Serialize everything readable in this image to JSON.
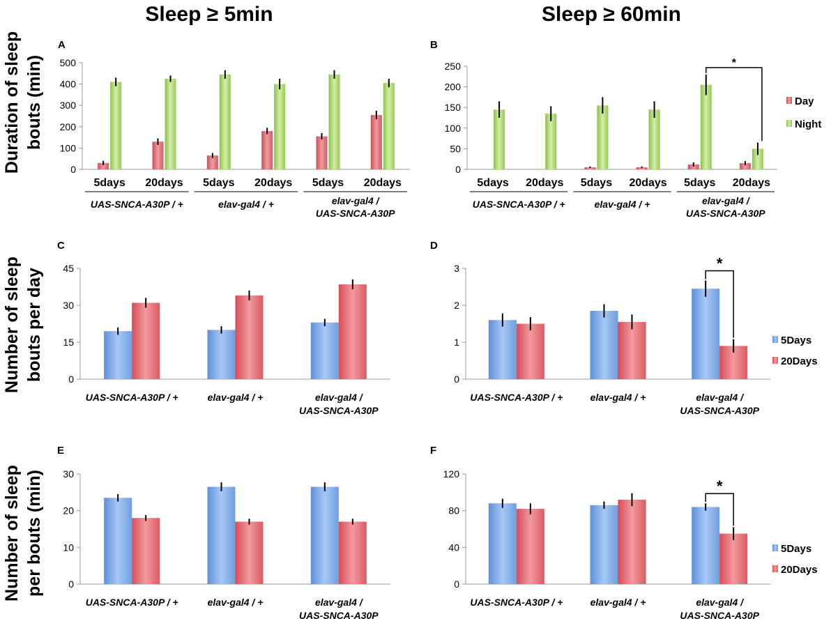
{
  "titles": {
    "left": "Sleep ≥ 5min",
    "right": "Sleep ≥ 60min"
  },
  "ylabels": {
    "row1": [
      "Duration of sleep",
      "bouts (min)"
    ],
    "row2": [
      "Number of sleep",
      "bouts per day"
    ],
    "row3": [
      "Number of sleep",
      "per bouts (min)"
    ]
  },
  "group_labels": {
    "g1": "UAS-SNCA-A30P / +",
    "g2": "elav-gal4 / +",
    "g3_line1": "elav-gal4 /",
    "g3_line2": "UAS-SNCA-A30P"
  },
  "colors": {
    "day": "#d9626a",
    "night": "#a6d35f",
    "d5": "#79a9e8",
    "d20": "#e9666d",
    "axis": "#999999",
    "err": "#000000"
  },
  "chart_data": [
    {
      "panel": "A",
      "type": "bar",
      "ylim": [
        0,
        500
      ],
      "yticks": [
        0,
        100,
        200,
        300,
        400,
        500
      ],
      "categories": [
        "5days",
        "20days",
        "5days",
        "20days",
        "5days",
        "20days"
      ],
      "groups": [
        "UAS-SNCA-A30P / +",
        "elav-gal4 / +",
        "elav-gal4 / UAS-SNCA-A30P"
      ],
      "series": [
        {
          "name": "Day",
          "color": "day",
          "values": [
            30,
            130,
            65,
            180,
            155,
            255
          ],
          "errors": [
            10,
            15,
            12,
            15,
            15,
            20
          ]
        },
        {
          "name": "Night",
          "color": "night",
          "values": [
            410,
            425,
            445,
            400,
            445,
            405
          ],
          "errors": [
            20,
            15,
            20,
            25,
            20,
            20
          ]
        }
      ],
      "legend": null
    },
    {
      "panel": "B",
      "type": "bar",
      "ylim": [
        0,
        250
      ],
      "yticks": [
        0,
        50,
        100,
        150,
        200,
        250
      ],
      "categories": [
        "5days",
        "20days",
        "5days",
        "20days",
        "5days",
        "20days"
      ],
      "groups": [
        "UAS-SNCA-A30P / +",
        "elav-gal4 / +",
        "elav-gal4 / UAS-SNCA-A30P"
      ],
      "series": [
        {
          "name": "Day",
          "color": "day",
          "values": [
            0,
            0,
            5,
            5,
            12,
            15
          ],
          "errors": [
            0,
            0,
            2,
            2,
            5,
            5
          ]
        },
        {
          "name": "Night",
          "color": "night",
          "values": [
            145,
            135,
            155,
            145,
            205,
            50
          ],
          "errors": [
            20,
            18,
            20,
            20,
            25,
            15
          ]
        }
      ],
      "legend": [
        "Day",
        "Night"
      ],
      "significance": {
        "from_bar": 4,
        "to_bar": 5,
        "label": "*"
      }
    },
    {
      "panel": "C",
      "type": "bar",
      "ylim": [
        0,
        45
      ],
      "yticks": [
        0,
        15,
        30,
        45
      ],
      "categories": [
        "UAS-SNCA-A30P / +",
        "elav-gal4 / +",
        "elav-gal4 / UAS-SNCA-A30P"
      ],
      "series": [
        {
          "name": "5Days",
          "color": "d5",
          "values": [
            19.5,
            20,
            23
          ],
          "errors": [
            1.5,
            1.5,
            1.5
          ]
        },
        {
          "name": "20Days",
          "color": "d20",
          "values": [
            31,
            34,
            38.5
          ],
          "errors": [
            2,
            2,
            2
          ]
        }
      ],
      "legend": null
    },
    {
      "panel": "D",
      "type": "bar",
      "ylim": [
        0,
        3
      ],
      "yticks": [
        0,
        1,
        2,
        3
      ],
      "categories": [
        "UAS-SNCA-A30P / +",
        "elav-gal4 / +",
        "elav-gal4 / UAS-SNCA-A30P"
      ],
      "series": [
        {
          "name": "5Days",
          "color": "d5",
          "values": [
            1.6,
            1.85,
            2.45
          ],
          "errors": [
            0.18,
            0.18,
            0.22
          ]
        },
        {
          "name": "20Days",
          "color": "d20",
          "values": [
            1.5,
            1.55,
            0.9
          ],
          "errors": [
            0.18,
            0.2,
            0.18
          ]
        }
      ],
      "legend": [
        "5Days",
        "20Days"
      ],
      "significance": {
        "group": 2,
        "label": "*"
      }
    },
    {
      "panel": "E",
      "type": "bar",
      "ylim": [
        0,
        30
      ],
      "yticks": [
        0,
        10,
        20,
        30
      ],
      "categories": [
        "UAS-SNCA-A30P / +",
        "elav-gal4 / +",
        "elav-gal4 / UAS-SNCA-A30P"
      ],
      "series": [
        {
          "name": "5Days",
          "color": "d5",
          "values": [
            23.5,
            26.5,
            26.5
          ],
          "errors": [
            1,
            1.2,
            1.2
          ]
        },
        {
          "name": "20Days",
          "color": "d20",
          "values": [
            18,
            17,
            17
          ],
          "errors": [
            0.8,
            0.8,
            0.8
          ]
        }
      ],
      "legend": null
    },
    {
      "panel": "F",
      "type": "bar",
      "ylim": [
        0,
        120
      ],
      "yticks": [
        0,
        40,
        80,
        120
      ],
      "categories": [
        "UAS-SNCA-A30P / +",
        "elav-gal4 / +",
        "elav-gal4 / UAS-SNCA-A30P"
      ],
      "series": [
        {
          "name": "5Days",
          "color": "d5",
          "values": [
            88,
            86,
            84
          ],
          "errors": [
            5,
            4,
            4
          ]
        },
        {
          "name": "20Days",
          "color": "d20",
          "values": [
            82,
            92,
            55
          ],
          "errors": [
            6,
            7,
            7
          ]
        }
      ],
      "legend": [
        "5Days",
        "20Days"
      ],
      "significance": {
        "group": 2,
        "label": "*"
      }
    }
  ]
}
